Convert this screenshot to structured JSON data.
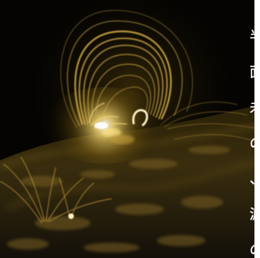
{
  "scene": {
    "subject_icon": "solar-corona-image",
    "colors": {
      "background": "#000000",
      "loop": "#d9b24a",
      "loop_bright": "#fff2b8",
      "surface": "#4a3a12"
    }
  },
  "side_text": {
    "chars": [
      "半",
      "面",
      "未",
      "の",
      "、",
      "渡",
      "の"
    ]
  }
}
